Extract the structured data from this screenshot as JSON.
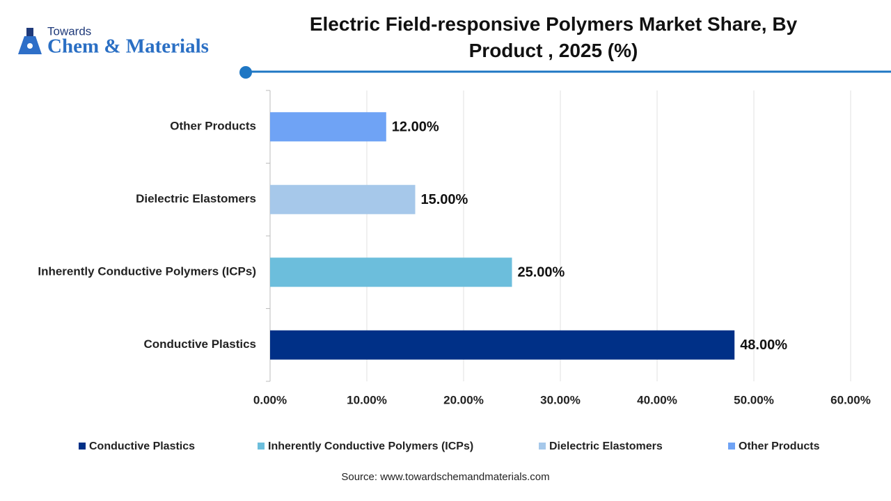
{
  "header": {
    "logo_small": "Towards",
    "logo_main": "Chem & Materials"
  },
  "chart_data": {
    "type": "barh",
    "title": "Electric Field-responsive Polymers Market Share, By Product , 2025 (%)",
    "categories": [
      "Conductive Plastics",
      "Inherently Conductive Polymers (ICPs)",
      "Dielectric Elastomers",
      "Other Products"
    ],
    "values": [
      48,
      25,
      15,
      12
    ],
    "value_labels": [
      "48.00%",
      "25.00%",
      "15.00%",
      "12.00%"
    ],
    "colors": [
      "#003087",
      "#6cbedc",
      "#a6c8ea",
      "#6fa3f5"
    ],
    "xlim": [
      0,
      60
    ],
    "xticks": [
      {
        "value": 0,
        "label": "0.00%"
      },
      {
        "value": 10,
        "label": "10.00%"
      },
      {
        "value": 20,
        "label": "20.00%"
      },
      {
        "value": 30,
        "label": "30.00%"
      },
      {
        "value": 40,
        "label": "40.00%"
      },
      {
        "value": 50,
        "label": "50.00%"
      },
      {
        "value": 60,
        "label": "60.00%"
      }
    ],
    "grid": true,
    "legend": "bottom"
  },
  "source": "Source: www.towardschemandmaterials.com"
}
